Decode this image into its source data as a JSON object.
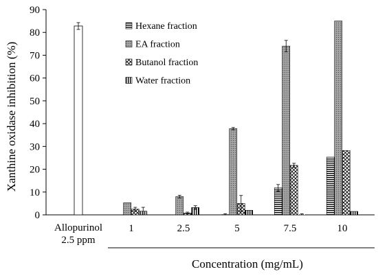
{
  "chart_data": {
    "type": "bar",
    "title": "",
    "xlabel": "Concentration (mg/mL)",
    "ylabel": "Xanthine oxidase inhibition (%)",
    "ylim": [
      0,
      90
    ],
    "yticks": [
      0,
      10,
      20,
      30,
      40,
      50,
      60,
      70,
      80,
      90
    ],
    "grid": false,
    "legend_position": "top-center",
    "control": {
      "label_line1": "Allopurinol",
      "label_line2": "2.5 ppm",
      "value": 82.8,
      "error": 1.5
    },
    "categories": [
      "1",
      "2.5",
      "5",
      "7.5",
      "10"
    ],
    "series": [
      {
        "name": "Hexane fraction",
        "pattern": "horizontal-lines",
        "values": [
          0,
          0,
          0.2,
          11.8,
          25.3
        ],
        "errors": [
          0,
          0,
          0.3,
          1.5,
          0
        ]
      },
      {
        "name": "EA fraction",
        "pattern": "dots-gray",
        "values": [
          5.3,
          8.0,
          37.8,
          74.0,
          85.0
        ],
        "errors": [
          0,
          0.6,
          0.5,
          2.5,
          0
        ]
      },
      {
        "name": "Butanol fraction",
        "pattern": "crosshatch",
        "values": [
          2.5,
          0.8,
          5.0,
          21.7,
          28.2
        ],
        "errors": [
          0.8,
          0.4,
          3.5,
          0.9,
          0
        ]
      },
      {
        "name": "Water fraction",
        "pattern": "vertical-lines",
        "values": [
          1.6,
          3.2,
          2.0,
          0.2,
          1.5
        ],
        "errors": [
          1.7,
          0.8,
          0,
          0.3,
          0
        ]
      }
    ]
  }
}
